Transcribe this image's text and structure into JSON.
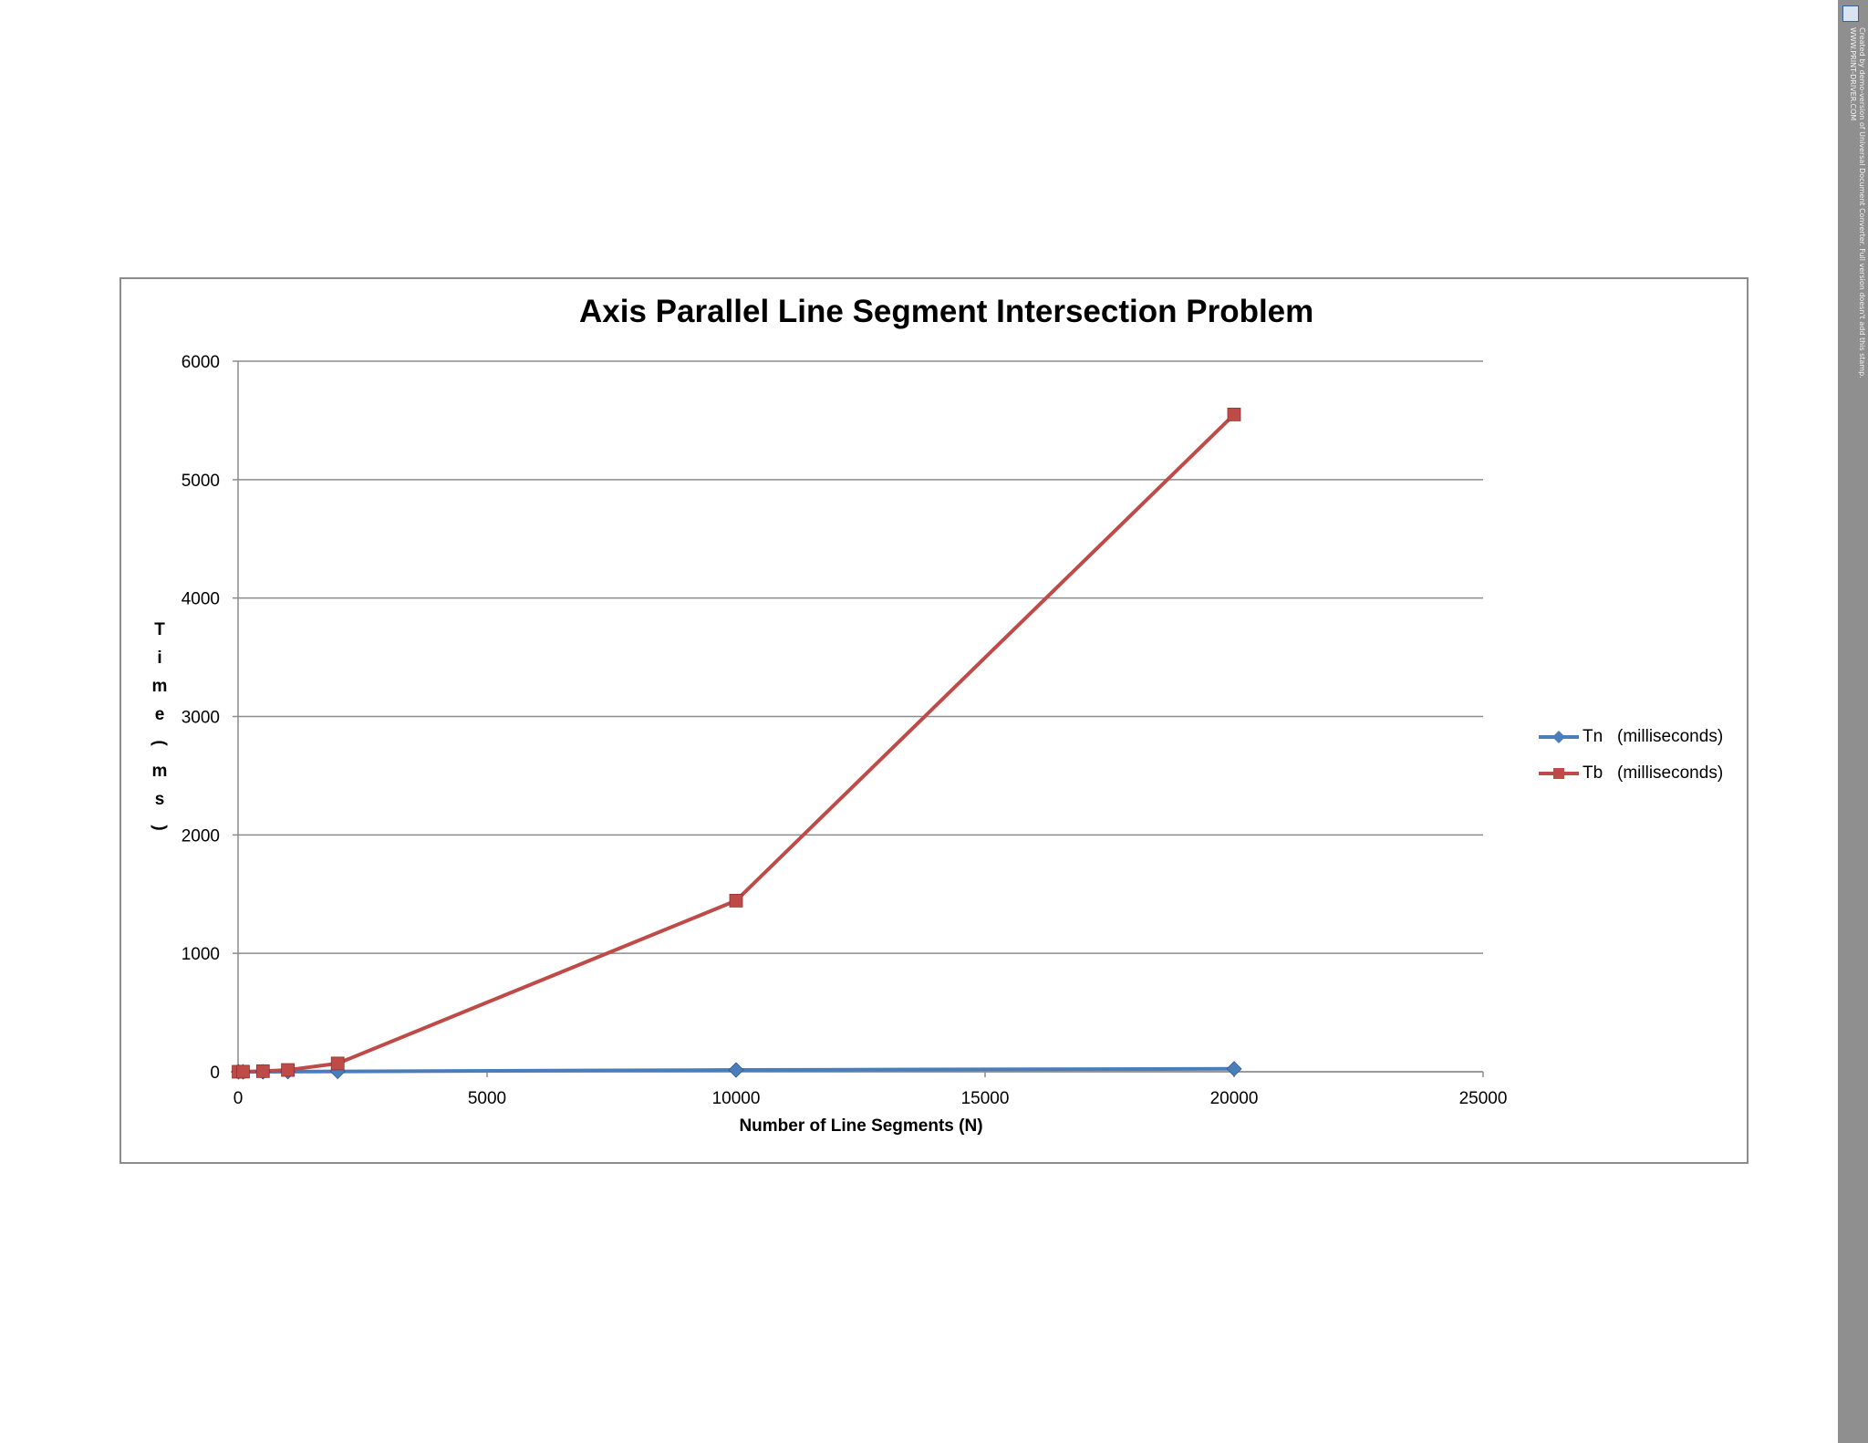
{
  "chart_data": {
    "type": "line",
    "title": "Axis Parallel Line Segment Intersection Problem",
    "xlabel": "Number of Line Segments (N)",
    "ylabel": "Time (ms)",
    "xlim": [
      0,
      25000
    ],
    "ylim": [
      0,
      6000
    ],
    "xticks": [
      "0",
      "5000",
      "10000",
      "15000",
      "20000",
      "25000"
    ],
    "yticks": [
      "0",
      "1000",
      "2000",
      "3000",
      "4000",
      "5000",
      "6000"
    ],
    "grid": "horizontal",
    "legend_position": "right",
    "series": [
      {
        "name": "Tn   (milliseconds)",
        "color": "#4a7ebb",
        "marker": "diamond",
        "x": [
          10,
          100,
          500,
          1000,
          2000,
          10000,
          20000
        ],
        "y": [
          0,
          0,
          0,
          1,
          3,
          15,
          25
        ]
      },
      {
        "name": "Tb   (milliseconds)",
        "color": "#be4b48",
        "marker": "square",
        "x": [
          10,
          100,
          500,
          1000,
          2000,
          10000,
          20000
        ],
        "y": [
          0,
          1,
          5,
          15,
          70,
          1445,
          5550
        ]
      }
    ]
  },
  "watermark": {
    "line1": "Created by demo-version of Universal Document Converter. Full version doesn't add this stamp.",
    "line2": "WWW.PRINT-DRIVER.COM",
    "icon": "document-converter-icon"
  }
}
